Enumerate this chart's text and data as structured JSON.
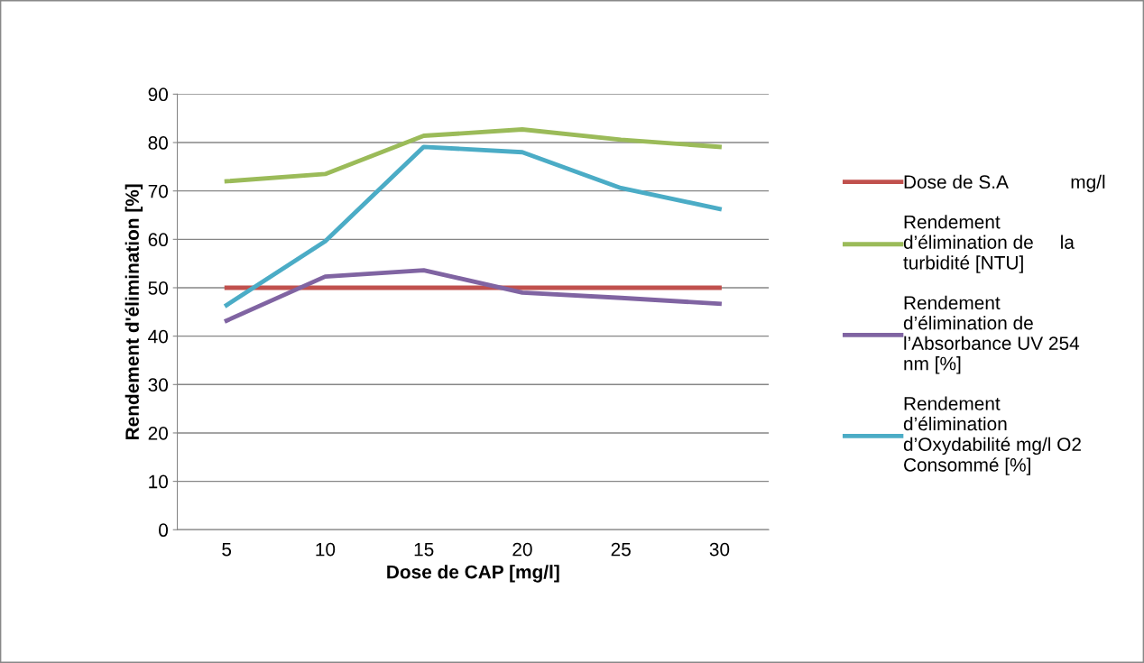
{
  "chart_data": {
    "type": "line",
    "xlabel": "Dose de CAP [mg/l]",
    "ylabel": "Rendement d'élimination [%]",
    "categories": [
      "5",
      "10",
      "15",
      "20",
      "25",
      "30"
    ],
    "series": [
      {
        "name": "Dose de S.A            mg/l",
        "color": "#c0504d",
        "values": [
          50,
          50,
          50,
          50,
          50,
          50
        ]
      },
      {
        "name": "Rendement\nd’élimination de     la\nturbidité [NTU]",
        "color": "#9bbb59",
        "values": [
          72,
          73.5,
          81.4,
          82.7,
          80.6,
          79.1
        ]
      },
      {
        "name": "Rendement\nd’élimination de\nl’Absorbance UV 254\nnm [%]",
        "color": "#8064a2",
        "values": [
          43.2,
          52.3,
          53.6,
          49,
          47.9,
          46.7
        ]
      },
      {
        "name": "Rendement\nd’élimination\nd’Oxydabilité mg/l O2\nConsommé [%]",
        "color": "#4bacc6",
        "values": [
          46.4,
          59.6,
          79.1,
          78,
          70.6,
          66.3
        ]
      }
    ],
    "ylim": [
      0,
      90
    ],
    "yticks": [
      0,
      10,
      20,
      30,
      40,
      50,
      60,
      70,
      80,
      90
    ],
    "grid": "y",
    "legend": "right",
    "marker": "none",
    "line_style": "solid"
  }
}
